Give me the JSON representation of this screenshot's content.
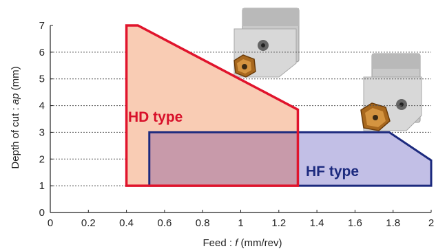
{
  "chart_data": {
    "type": "area",
    "xlabel": {
      "prefix": "Feed : ",
      "var": "f",
      "suffix": " (mm/rev)"
    },
    "ylabel": {
      "prefix": "Depth of cut : ",
      "var": "ap",
      "suffix": " (mm)"
    },
    "xlim": [
      0,
      2
    ],
    "ylim": [
      0,
      7
    ],
    "x_ticks": [
      "0",
      "0.2",
      "0.4",
      "0.6",
      "0.8",
      "1",
      "1.2",
      "1.4",
      "1.6",
      "1.8",
      "2"
    ],
    "y_ticks": [
      "0",
      "1",
      "2",
      "3",
      "4",
      "5",
      "6",
      "7"
    ],
    "gridlines": "horizontal dotted",
    "series": [
      {
        "name": "HD type",
        "edge_color": "#e0142c",
        "fill_color": "#f9ccb4",
        "label_color": "#d8102a",
        "points": [
          [
            0.4,
            1
          ],
          [
            0.4,
            7
          ],
          [
            0.46,
            7
          ],
          [
            1.3,
            3.85
          ],
          [
            1.3,
            1
          ]
        ]
      },
      {
        "name": "HF type",
        "edge_color": "#1c2a7e",
        "fill_color": "#c2bfe6",
        "label_color": "#1c2a7e",
        "points": [
          [
            0.52,
            1
          ],
          [
            0.52,
            3
          ],
          [
            1.78,
            3
          ],
          [
            2.0,
            1.95
          ],
          [
            2.0,
            1
          ]
        ]
      }
    ],
    "overlap_fill_color": "#c89aaa"
  }
}
